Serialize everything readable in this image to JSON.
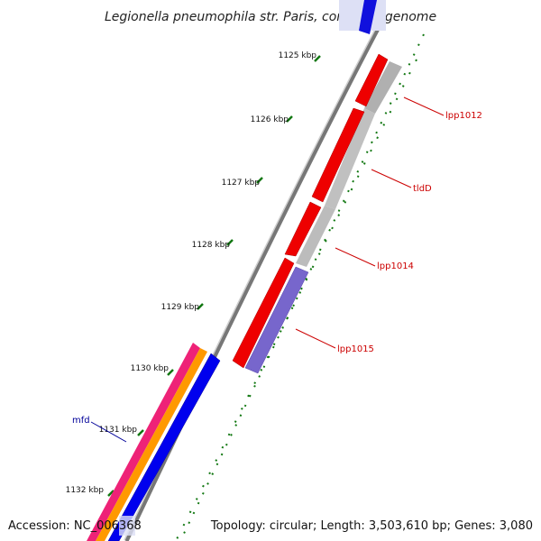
{
  "title": "Legionella pneumophila str. Paris, complete genome",
  "footer": {
    "accession": "Accession: NC_006368",
    "summary": "Topology: circular; Length: 3,503,610 bp; Genes: 3,080"
  },
  "ticks": [
    "1125 kbp",
    "1126 kbp",
    "1127 kbp",
    "1128 kbp",
    "1129 kbp",
    "1130 kbp",
    "1131 kbp",
    "1132 kbp"
  ],
  "gene_labels": [
    {
      "name": "lpp1012",
      "color": "#cc0000"
    },
    {
      "name": "tldD",
      "color": "#cc0000"
    },
    {
      "name": "lpp1014",
      "color": "#cc0000"
    },
    {
      "name": "lpp1015",
      "color": "#cc0000"
    },
    {
      "name": "mfd",
      "color": "#000099"
    }
  ],
  "colors": {
    "forward_gene": "#ff0000",
    "reverse_gene": "#0000ee",
    "shadow": "#bbbbbb",
    "hypothetical": "#8877dd",
    "orange_feature": "#ff9900",
    "pink_feature": "#ee2277",
    "backbone": "#888888",
    "tick_marks": "#117711"
  }
}
